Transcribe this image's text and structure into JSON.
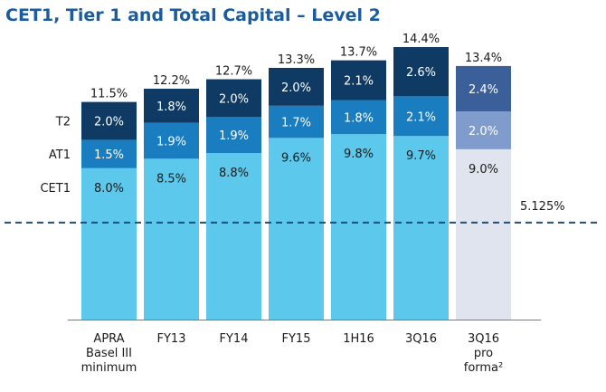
{
  "title": "CET1, Tier 1 and Total Capital – Level 2",
  "chart_data": {
    "type": "bar",
    "stacked": true,
    "categories": [
      [
        "APRA",
        "Basel III",
        "minimum"
      ],
      [
        "FY13"
      ],
      [
        "FY14"
      ],
      [
        "FY15"
      ],
      [
        "1H16"
      ],
      [
        "3Q16"
      ],
      [
        "3Q16",
        "pro",
        "forma²"
      ]
    ],
    "series": [
      {
        "name": "CET1",
        "values": [
          8.0,
          8.5,
          8.8,
          9.6,
          9.8,
          9.7,
          9.0
        ],
        "labels": [
          "8.0%",
          "8.5%",
          "8.8%",
          "9.6%",
          "9.8%",
          "9.7%",
          "9.0%"
        ],
        "colors": [
          "#5bc8ec",
          "#5bc8ec",
          "#5bc8ec",
          "#5bc8ec",
          "#5bc8ec",
          "#5bc8ec",
          "#dfe4ef"
        ],
        "label_colors": [
          "#1a1a1a",
          "#1a1a1a",
          "#1a1a1a",
          "#1a1a1a",
          "#1a1a1a",
          "#1a1a1a",
          "#1a1a1a"
        ]
      },
      {
        "name": "AT1",
        "values": [
          1.5,
          1.9,
          1.9,
          1.7,
          1.8,
          2.1,
          2.0
        ],
        "labels": [
          "1.5%",
          "1.9%",
          "1.9%",
          "1.7%",
          "1.8%",
          "2.1%",
          "2.0%"
        ],
        "colors": [
          "#1a7dc0",
          "#1a7dc0",
          "#1a7dc0",
          "#1a7dc0",
          "#1a7dc0",
          "#1a7dc0",
          "#7f9ccd"
        ],
        "label_colors": [
          "#ffffff",
          "#ffffff",
          "#ffffff",
          "#ffffff",
          "#ffffff",
          "#ffffff",
          "#ffffff"
        ]
      },
      {
        "name": "T2",
        "values": [
          2.0,
          1.8,
          2.0,
          2.0,
          2.1,
          2.6,
          2.4
        ],
        "labels": [
          "2.0%",
          "1.8%",
          "2.0%",
          "2.0%",
          "2.1%",
          "2.6%",
          "2.4%"
        ],
        "colors": [
          "#0e3a63",
          "#0e3a63",
          "#0e3a63",
          "#0e3a63",
          "#0e3a63",
          "#0e3a63",
          "#3b5f99"
        ],
        "label_colors": [
          "#ffffff",
          "#ffffff",
          "#ffffff",
          "#ffffff",
          "#ffffff",
          "#ffffff",
          "#ffffff"
        ]
      }
    ],
    "totals": [
      "11.5%",
      "12.2%",
      "12.7%",
      "13.3%",
      "13.7%",
      "14.4%",
      "13.4%"
    ],
    "row_labels": [
      "T2",
      "AT1",
      "CET1"
    ],
    "reference_line": {
      "value": 5.125,
      "label": "5.125%",
      "style": "dashed",
      "color": "#1e4f7a"
    },
    "ylim": [
      0,
      14.4
    ],
    "grid": false,
    "legend": "none"
  }
}
